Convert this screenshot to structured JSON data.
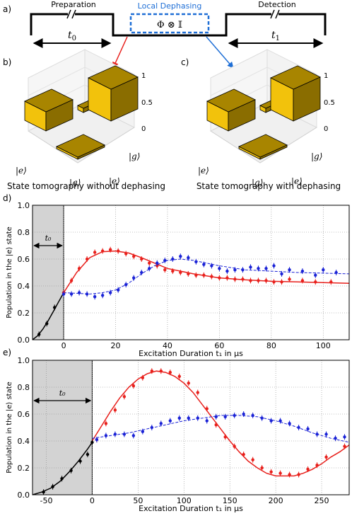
{
  "panel_a": {
    "label": "a)",
    "preparation": "Preparation",
    "local_dephasing": "Local Dephasing",
    "detection": "Detection",
    "t0": "t",
    "t0_sub": "0",
    "t1": "t",
    "t1_sub": "1",
    "operator": "Φ ⊗ 𝕀"
  },
  "panel_b": {
    "label": "b)",
    "caption": "State tomography without dephasing",
    "z_ticks": [
      "1",
      "0.5",
      "0"
    ],
    "axis_labels": [
      "|e⟩",
      "|g⟩",
      "|e⟩",
      "|g⟩"
    ]
  },
  "panel_c": {
    "label": "c)",
    "caption": "State tomography with dephasing",
    "z_ticks": [
      "1",
      "0.5",
      "0"
    ],
    "axis_labels": [
      "|e⟩",
      "|g⟩",
      "|e⟩",
      "|g⟩"
    ]
  },
  "colors": {
    "red": "#e8201c",
    "blue": "#1a22d6",
    "black": "#000000",
    "shade": "#d3d3d3",
    "gold_top": "#f2c20c",
    "gold_side": "#8a6d00",
    "dephasing_box": "#1f6fd6",
    "arrow_red": "#e8201c",
    "arrow_blue": "#1f6fd6"
  },
  "chart_data": [
    {
      "type": "scatter",
      "panel": "d)",
      "xlabel": "Excitation Duration t₁ in μs",
      "ylabel": "Population in the |e⟩ state",
      "xlim": [
        -12,
        110
      ],
      "ylim": [
        0,
        1.0
      ],
      "xticks": [
        0,
        20,
        40,
        60,
        80,
        100
      ],
      "yticks": [
        0.0,
        0.2,
        0.4,
        0.6,
        0.8,
        1.0
      ],
      "shade_xrange": [
        -12,
        0
      ],
      "shade_label": "t0",
      "grid": true,
      "series": [
        {
          "color": "black",
          "points": [
            [
              -9.5,
              0.04
            ],
            [
              -6.5,
              0.12
            ],
            [
              -3.5,
              0.24
            ],
            [
              0,
              0.35
            ]
          ]
        },
        {
          "color": "red",
          "points": [
            [
              0,
              0.35
            ],
            [
              3,
              0.44
            ],
            [
              6,
              0.53
            ],
            [
              9,
              0.6
            ],
            [
              12,
              0.65
            ],
            [
              15,
              0.66
            ],
            [
              18,
              0.67
            ],
            [
              21,
              0.66
            ],
            [
              24,
              0.64
            ],
            [
              27,
              0.62
            ],
            [
              30,
              0.6
            ],
            [
              33,
              0.57
            ],
            [
              36,
              0.55
            ],
            [
              39,
              0.52
            ],
            [
              42,
              0.51
            ],
            [
              45,
              0.5
            ],
            [
              48,
              0.49
            ],
            [
              51,
              0.48
            ],
            [
              54,
              0.48
            ],
            [
              57,
              0.47
            ],
            [
              60,
              0.46
            ],
            [
              63,
              0.46
            ],
            [
              66,
              0.45
            ],
            [
              69,
              0.45
            ],
            [
              72,
              0.44
            ],
            [
              75,
              0.44
            ],
            [
              78,
              0.44
            ],
            [
              81,
              0.43
            ],
            [
              84,
              0.43
            ],
            [
              87,
              0.45
            ],
            [
              92,
              0.44
            ],
            [
              97,
              0.43
            ],
            [
              103,
              0.43
            ]
          ]
        },
        {
          "color": "blue",
          "points": [
            [
              0,
              0.34
            ],
            [
              3,
              0.34
            ],
            [
              6,
              0.35
            ],
            [
              9,
              0.34
            ],
            [
              12,
              0.32
            ],
            [
              15,
              0.33
            ],
            [
              18,
              0.35
            ],
            [
              21,
              0.37
            ],
            [
              24,
              0.41
            ],
            [
              27,
              0.46
            ],
            [
              30,
              0.5
            ],
            [
              33,
              0.53
            ],
            [
              36,
              0.57
            ],
            [
              39,
              0.59
            ],
            [
              42,
              0.6
            ],
            [
              45,
              0.62
            ],
            [
              48,
              0.61
            ],
            [
              51,
              0.58
            ],
            [
              54,
              0.56
            ],
            [
              57,
              0.55
            ],
            [
              60,
              0.53
            ],
            [
              63,
              0.51
            ],
            [
              66,
              0.52
            ],
            [
              69,
              0.52
            ],
            [
              72,
              0.54
            ],
            [
              75,
              0.53
            ],
            [
              78,
              0.53
            ],
            [
              81,
              0.55
            ],
            [
              84,
              0.49
            ],
            [
              87,
              0.52
            ],
            [
              92,
              0.51
            ],
            [
              97,
              0.48
            ],
            [
              100,
              0.52
            ],
            [
              105,
              0.5
            ]
          ]
        }
      ],
      "fits": [
        {
          "color": "black",
          "style": "solid",
          "x": [
            -12,
            -10,
            -8,
            -6,
            -4,
            -2,
            0
          ],
          "y": [
            0.0,
            0.03,
            0.08,
            0.14,
            0.21,
            0.28,
            0.35
          ]
        },
        {
          "color": "red",
          "style": "solid",
          "x": [
            0,
            5,
            10,
            15,
            20,
            25,
            30,
            40,
            50,
            60,
            70,
            80,
            90,
            100,
            110
          ],
          "y": [
            0.35,
            0.5,
            0.61,
            0.655,
            0.66,
            0.645,
            0.61,
            0.53,
            0.49,
            0.46,
            0.445,
            0.435,
            0.43,
            0.425,
            0.42
          ]
        },
        {
          "color": "blue",
          "style": "dashed",
          "x": [
            0,
            5,
            10,
            15,
            20,
            25,
            30,
            35,
            40,
            45,
            50,
            55,
            60,
            70,
            80,
            90,
            100,
            110
          ],
          "y": [
            0.35,
            0.345,
            0.34,
            0.35,
            0.37,
            0.42,
            0.49,
            0.55,
            0.59,
            0.6,
            0.59,
            0.57,
            0.55,
            0.52,
            0.51,
            0.5,
            0.495,
            0.49
          ]
        }
      ]
    },
    {
      "type": "scatter",
      "panel": "e)",
      "xlabel": "Excitation Duration t₁ in μs",
      "ylabel": "Population in the |e⟩ state",
      "xlim": [
        -65,
        280
      ],
      "ylim": [
        0,
        1.0
      ],
      "xticks": [
        -50,
        0,
        50,
        100,
        150,
        200,
        250
      ],
      "yticks": [
        0.0,
        0.2,
        0.4,
        0.6,
        0.8,
        1.0
      ],
      "shade_xrange": [
        -65,
        0
      ],
      "shade_label": "t0",
      "grid": true,
      "series": [
        {
          "color": "black",
          "points": [
            [
              -53,
              0.02
            ],
            [
              -43,
              0.06
            ],
            [
              -33,
              0.12
            ],
            [
              -23,
              0.18
            ],
            [
              -13,
              0.25
            ],
            [
              -5,
              0.3
            ],
            [
              0,
              0.39
            ]
          ]
        },
        {
          "color": "red",
          "points": [
            [
              5,
              0.41
            ],
            [
              15,
              0.53
            ],
            [
              25,
              0.63
            ],
            [
              35,
              0.73
            ],
            [
              45,
              0.81
            ],
            [
              55,
              0.87
            ],
            [
              65,
              0.92
            ],
            [
              75,
              0.92
            ],
            [
              85,
              0.91
            ],
            [
              95,
              0.88
            ],
            [
              105,
              0.83
            ],
            [
              115,
              0.76
            ],
            [
              125,
              0.64
            ],
            [
              135,
              0.52
            ],
            [
              145,
              0.43
            ],
            [
              155,
              0.36
            ],
            [
              165,
              0.3
            ],
            [
              175,
              0.26
            ],
            [
              185,
              0.2
            ],
            [
              195,
              0.17
            ],
            [
              205,
              0.16
            ],
            [
              215,
              0.15
            ],
            [
              225,
              0.15
            ],
            [
              235,
              0.19
            ],
            [
              245,
              0.22
            ],
            [
              255,
              0.28
            ],
            [
              275,
              0.36
            ]
          ]
        },
        {
          "color": "blue",
          "points": [
            [
              5,
              0.41
            ],
            [
              15,
              0.44
            ],
            [
              25,
              0.45
            ],
            [
              35,
              0.45
            ],
            [
              45,
              0.44
            ],
            [
              55,
              0.47
            ],
            [
              65,
              0.5
            ],
            [
              75,
              0.53
            ],
            [
              85,
              0.55
            ],
            [
              95,
              0.57
            ],
            [
              105,
              0.57
            ],
            [
              115,
              0.57
            ],
            [
              125,
              0.55
            ],
            [
              135,
              0.58
            ],
            [
              145,
              0.58
            ],
            [
              155,
              0.59
            ],
            [
              165,
              0.6
            ],
            [
              175,
              0.59
            ],
            [
              185,
              0.57
            ],
            [
              195,
              0.55
            ],
            [
              205,
              0.55
            ],
            [
              215,
              0.53
            ],
            [
              225,
              0.5
            ],
            [
              235,
              0.49
            ],
            [
              245,
              0.45
            ],
            [
              255,
              0.45
            ],
            [
              265,
              0.42
            ],
            [
              275,
              0.43
            ]
          ]
        }
      ],
      "fits": [
        {
          "color": "black",
          "style": "solid",
          "x": [
            -65,
            -55,
            -45,
            -35,
            -25,
            -15,
            -5,
            0
          ],
          "y": [
            0.0,
            0.02,
            0.05,
            0.1,
            0.17,
            0.25,
            0.34,
            0.39
          ]
        },
        {
          "color": "red",
          "style": "solid",
          "x": [
            0,
            10,
            20,
            30,
            40,
            50,
            60,
            70,
            80,
            90,
            100,
            110,
            120,
            130,
            140,
            150,
            160,
            170,
            180,
            190,
            200,
            210,
            220,
            230,
            240,
            250,
            260,
            270,
            280
          ],
          "y": [
            0.4,
            0.51,
            0.62,
            0.72,
            0.8,
            0.86,
            0.9,
            0.92,
            0.91,
            0.88,
            0.83,
            0.76,
            0.67,
            0.58,
            0.49,
            0.4,
            0.32,
            0.25,
            0.2,
            0.16,
            0.14,
            0.14,
            0.14,
            0.16,
            0.19,
            0.23,
            0.28,
            0.32,
            0.37
          ]
        },
        {
          "color": "blue",
          "style": "dashed",
          "x": [
            0,
            20,
            40,
            60,
            80,
            100,
            120,
            140,
            160,
            180,
            200,
            220,
            240,
            260,
            280
          ],
          "y": [
            0.42,
            0.44,
            0.46,
            0.49,
            0.52,
            0.55,
            0.57,
            0.59,
            0.59,
            0.58,
            0.55,
            0.51,
            0.46,
            0.42,
            0.39
          ]
        }
      ]
    }
  ]
}
